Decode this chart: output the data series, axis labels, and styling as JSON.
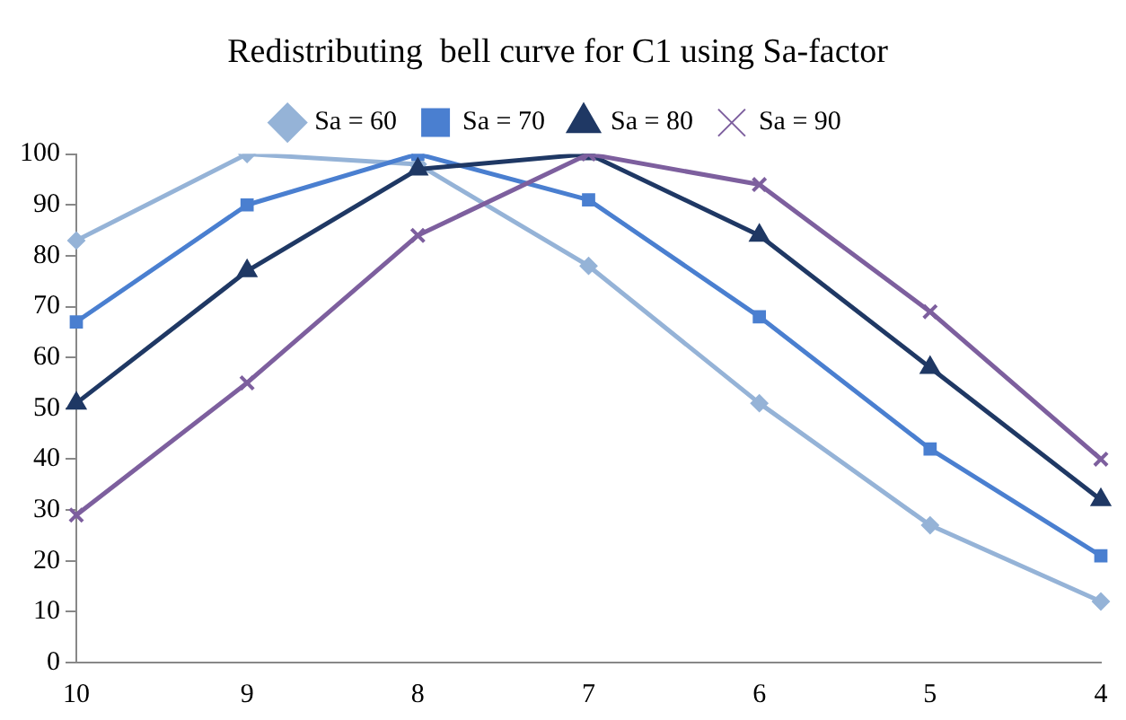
{
  "chart_data": {
    "type": "line",
    "title": "Redistributing  bell curve for C1 using Sa-factor",
    "categories": [
      "10",
      "9",
      "8",
      "7",
      "6",
      "5",
      "4"
    ],
    "series": [
      {
        "name": "Sa = 60",
        "color": "#95b3d7",
        "marker": "diamond",
        "values": [
          83,
          100,
          98,
          78,
          51,
          27,
          12
        ]
      },
      {
        "name": "Sa = 70",
        "color": "#4a7fd0",
        "marker": "square",
        "values": [
          67,
          90,
          100,
          91,
          68,
          42,
          21
        ]
      },
      {
        "name": "Sa = 80",
        "color": "#1f3864",
        "marker": "triangle",
        "values": [
          51,
          77,
          97,
          100,
          84,
          58,
          32
        ]
      },
      {
        "name": "Sa = 90",
        "color": "#7d5f9e",
        "marker": "cross",
        "values": [
          29,
          55,
          84,
          100,
          94,
          69,
          40
        ]
      }
    ],
    "ylim": [
      0,
      100
    ],
    "yticks": [
      0,
      10,
      20,
      30,
      40,
      50,
      60,
      70,
      80,
      90,
      100
    ],
    "grid": false,
    "legend": "top"
  }
}
